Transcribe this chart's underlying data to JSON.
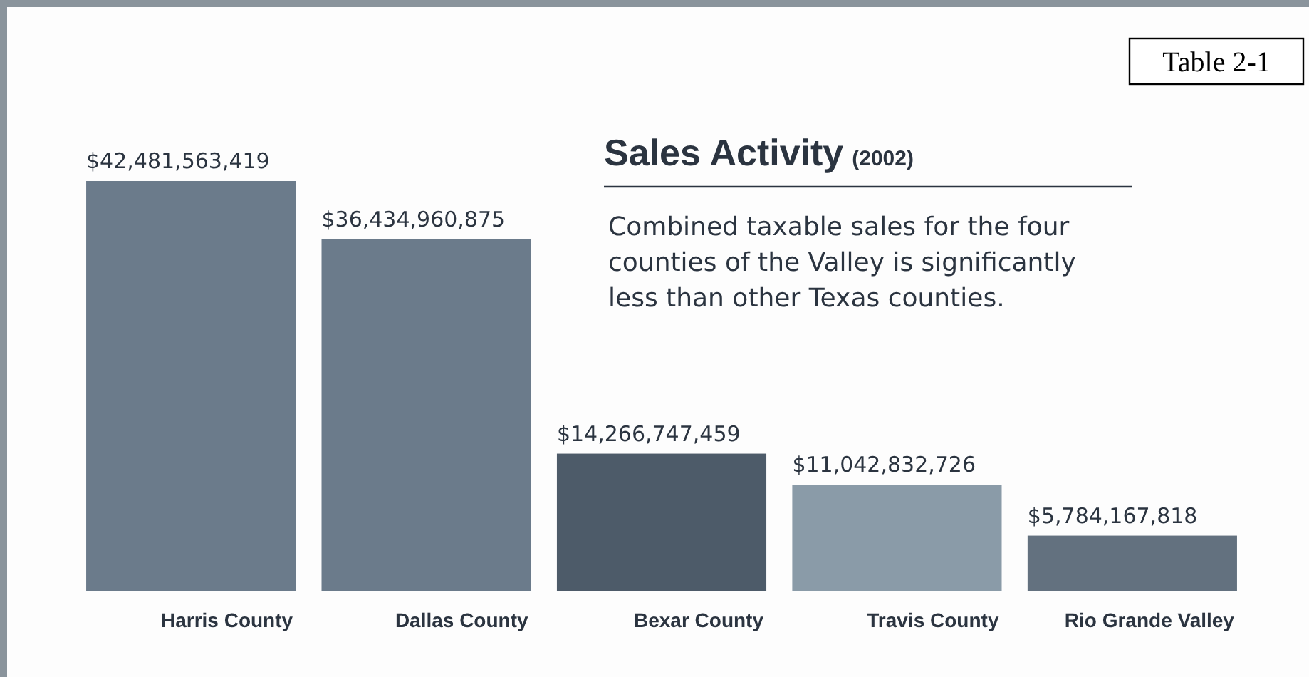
{
  "chart_data": {
    "type": "bar",
    "title": "Sales Activity",
    "subtitle": "(2002)",
    "annotations": [
      "Combined taxable sales for the four counties of the Valley is significantly less than other Texas counties.",
      "Table 2-1"
    ],
    "categories": [
      "Harris County",
      "Dallas County",
      "Bexar County",
      "Travis County",
      "Rio Grande Valley"
    ],
    "values": [
      42481563419,
      36434960875,
      14266747459,
      11042832726,
      5784167818
    ],
    "colors": [
      "#6b7b8b",
      "#6b7b8b",
      "#4d5b69",
      "#8a9ba8",
      "#63717f"
    ],
    "value_labels": [
      "$42,481,563,419",
      "$36,434,960,875",
      "$14,266,747,459",
      "$11,042,832,726",
      "$5,784,167,818"
    ]
  }
}
